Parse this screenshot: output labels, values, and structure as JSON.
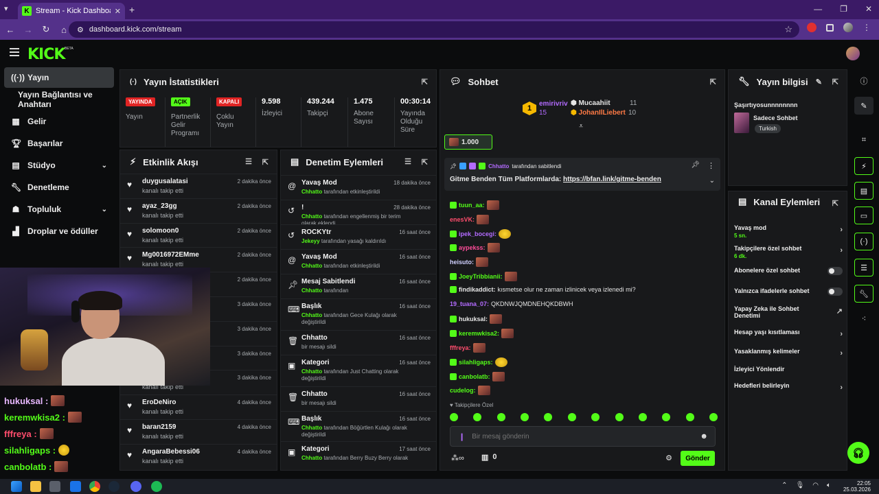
{
  "browser": {
    "tab_title": "Stream - Kick Dashboard",
    "url": "dashboard.kick.com/stream"
  },
  "header": {
    "logo": "KICK",
    "beta": "BETA"
  },
  "sidebar": {
    "items": [
      {
        "label": "Yayın",
        "icon": "broadcast-icon"
      },
      {
        "label": "Yayın Bağlantısı ve Anahtarı",
        "icon": ""
      },
      {
        "label": "Gelir",
        "icon": "revenue-icon"
      },
      {
        "label": "Başarılar",
        "icon": "trophy-icon"
      },
      {
        "label": "Stüdyo",
        "icon": "studio-icon"
      },
      {
        "label": "Denetleme",
        "icon": "wrench-icon"
      },
      {
        "label": "Topluluk",
        "icon": "community-icon"
      },
      {
        "label": "Droplar ve ödüller",
        "icon": "gift-icon"
      }
    ]
  },
  "stats": {
    "title": "Yayın İstatistikleri",
    "columns": [
      {
        "badge": "YAYINDA",
        "label": "Yayın"
      },
      {
        "badge": "AÇIK",
        "label": "Partnerlik Gelir Programı"
      },
      {
        "badge": "KAPALI",
        "label": "Çoklu Yayın"
      },
      {
        "value": "9.598",
        "label": "İzleyici"
      },
      {
        "value": "439.244",
        "label": "Takipçi"
      },
      {
        "value": "1.475",
        "label": "Abone Sayısı"
      },
      {
        "value": "00:30:14",
        "label": "Yayında Olduğu Süre"
      }
    ]
  },
  "activity": {
    "title": "Etkinlik Akışı",
    "items": [
      {
        "name": "duygusalatasi",
        "sub": "kanalı takip etti",
        "time": "2 dakika önce"
      },
      {
        "name": "ayaz_23gg",
        "sub": "kanalı takip etti",
        "time": "2 dakika önce"
      },
      {
        "name": "solomoon0",
        "sub": "kanalı takip etti",
        "time": "2 dakika önce"
      },
      {
        "name": "Mg0016972EMme",
        "sub": "kanalı takip etti",
        "time": "2 dakika önce"
      },
      {
        "name": "",
        "sub": "",
        "time": "2 dakika önce"
      },
      {
        "name": "",
        "sub": "",
        "time": "3 dakika önce"
      },
      {
        "name": "",
        "sub": "",
        "time": "3 dakika önce"
      },
      {
        "name": "",
        "sub": "",
        "time": "3 dakika önce"
      },
      {
        "name": "",
        "sub": "kanalı takip etti",
        "time": "3 dakika önce"
      },
      {
        "name": "EroDeNiro",
        "sub": "kanalı takip etti",
        "time": "4 dakika önce"
      },
      {
        "name": "baran2159",
        "sub": "kanalı takip etti",
        "time": "4 dakika önce"
      },
      {
        "name": "AngaraBebessi06",
        "sub": "kanalı takip etti",
        "time": "4 dakika önce"
      }
    ]
  },
  "moderation": {
    "title": "Denetim Eylemleri",
    "items": [
      {
        "name": "Yavaş Mod",
        "actor": "Chhatto",
        "sub": " tarafından etkinleştirildi",
        "time": "18 dakika önce"
      },
      {
        "name": "!",
        "actor": "Chhatto",
        "sub": " tarafından engellenmiş bir terim olarak eklendi",
        "time": "28 dakika önce"
      },
      {
        "name": "ROCKYtr",
        "actor": "Jekeyy",
        "sub": " tarafından yasağı kaldırıldı",
        "time": "16 saat önce"
      },
      {
        "name": "Yavaş Mod",
        "actor": "Chhatto",
        "sub": " tarafından etkinleştirildi",
        "time": "16 saat önce"
      },
      {
        "name": "Mesaj Sabitlendi",
        "actor": "Chhatto",
        "sub": " tarafından",
        "time": "16 saat önce"
      },
      {
        "name": "Başlık",
        "actor": "Chhatto",
        "sub": " tarafından Gece Kulağı olarak değiştirildi",
        "time": "16 saat önce"
      },
      {
        "name": "Chhatto",
        "actor": "",
        "sub": "bir mesajı sildi",
        "time": "16 saat önce"
      },
      {
        "name": "Kategori",
        "actor": "Chhatto",
        "sub": " tarafından Just Chatting olarak değiştirildi",
        "time": "16 saat önce"
      },
      {
        "name": "Chhatto",
        "actor": "",
        "sub": "bir mesajı sildi",
        "time": "16 saat önce"
      },
      {
        "name": "Başlık",
        "actor": "Chhatto",
        "sub": " tarafından Böğürtlen Kulağı olarak değiştirildi",
        "time": "16 saat önce"
      },
      {
        "name": "Kategori",
        "actor": "Chhatto",
        "sub": " tarafından Berry Buzy Berry olarak",
        "time": "17 saat önce"
      }
    ]
  },
  "chat": {
    "title": "Sohbet",
    "leaderboard": {
      "first": {
        "rank": "1",
        "name": "emirivriv",
        "count": "15"
      },
      "second": {
        "name": "Mucaahiit",
        "count": "11"
      },
      "third": {
        "name": "JohanIlLiebert",
        "count": "10"
      }
    },
    "goal": "1.000",
    "pinned": {
      "by": "Chhatto",
      "by_suffix": " tarafından sabitlendi",
      "text_prefix": "Gitme Benden Tüm Platformlarda: ",
      "link": "https://bfan.link/gitme-benden"
    },
    "messages": [
      {
        "user": "tuun_aa:",
        "color": "#53fc18",
        "text": "",
        "emote": "brown"
      },
      {
        "user": "enesVK:",
        "color": "#ff4d6d",
        "text": "",
        "emote": "brown"
      },
      {
        "user": "ipek_bocegi:",
        "color": "#b36bff",
        "text": "",
        "emote": "yellow"
      },
      {
        "user": "aypekss:",
        "color": "#ff4d9a",
        "text": "",
        "emote": "brown"
      },
      {
        "user": "heisuto:",
        "color": "#d0d0ff",
        "text": "",
        "emote": "brown"
      },
      {
        "user": "JoeyTribbianii:",
        "color": "#53fc18",
        "text": "",
        "emote": "brown"
      },
      {
        "user": "findikaddict:",
        "color": "#e6e6e6",
        "text": " kısmetse olur ne zaman izlinicek veya izlenedi mi?",
        "emote": ""
      },
      {
        "user": "19_tuana_07:",
        "color": "#b36bff",
        "text": " QKDNWJQMDNEHQKDBWH",
        "emote": ""
      },
      {
        "user": "hukuksal:",
        "color": "#e6e6e6",
        "text": "",
        "emote": "brown"
      },
      {
        "user": "keremwkisa2:",
        "color": "#53fc18",
        "text": "",
        "emote": "brown"
      },
      {
        "user": "fffreya:",
        "color": "#ff4d6d",
        "text": "",
        "emote": "brown"
      },
      {
        "user": "silahligaps:",
        "color": "#53fc18",
        "text": "",
        "emote": "yellow"
      },
      {
        "user": "canbolatb:",
        "color": "#53fc18",
        "text": "",
        "emote": "brown"
      },
      {
        "user": "cudelog:",
        "color": "#53fc18",
        "text": "",
        "emote": "brown"
      }
    ],
    "followers_only": "Takipçilere Özel",
    "input_placeholder": "Bir mesaj gönderin",
    "points": "0",
    "send_label": "Gönder"
  },
  "info": {
    "title": "Yayın bilgisi",
    "stream_title": "Şaşırtıyosunnnnnnnn",
    "category": "Sadece Sohbet",
    "language": "Turkish"
  },
  "channel_actions": {
    "title": "Kanal Eylemleri",
    "items": [
      {
        "label": "Yavaş mod",
        "sub": "5 sn.",
        "control": "chevron"
      },
      {
        "label": "Takipçilere özel sohbet",
        "sub": "6 dk.",
        "control": "chevron"
      },
      {
        "label": "Abonelere özel sohbet",
        "sub": "",
        "control": "toggle"
      },
      {
        "label": "Yalnızca ifadelerle sohbet",
        "sub": "",
        "control": "toggle"
      },
      {
        "label": "Yapay Zeka ile Sohbet Denetimi",
        "sub": "",
        "control": "external"
      },
      {
        "label": "Hesap yaşı kısıtlaması",
        "sub": "",
        "control": "chevron"
      },
      {
        "label": "Yasaklanmış kelimeler",
        "sub": "",
        "control": "chevron"
      },
      {
        "label": "İzleyici Yönlendir",
        "sub": "",
        "control": ""
      },
      {
        "label": "Hedefleri belirleyin",
        "sub": "",
        "control": "chevron"
      }
    ]
  },
  "overlay_chat": [
    {
      "user": "hukuksal :",
      "color": "#e8b8ff"
    },
    {
      "user": "keremwkisa2 :",
      "color": "#53fc18"
    },
    {
      "user": "fffreya :",
      "color": "#ff4d6d"
    },
    {
      "user": "silahligaps :",
      "color": "#53fc18"
    },
    {
      "user": "canbolatb :",
      "color": "#53fc18"
    }
  ],
  "taskbar": {
    "time": "22:05",
    "date": "25.03.2026"
  },
  "colors": {
    "brand": "#53fc18",
    "live": "#e02424",
    "panel": "#18191b"
  }
}
